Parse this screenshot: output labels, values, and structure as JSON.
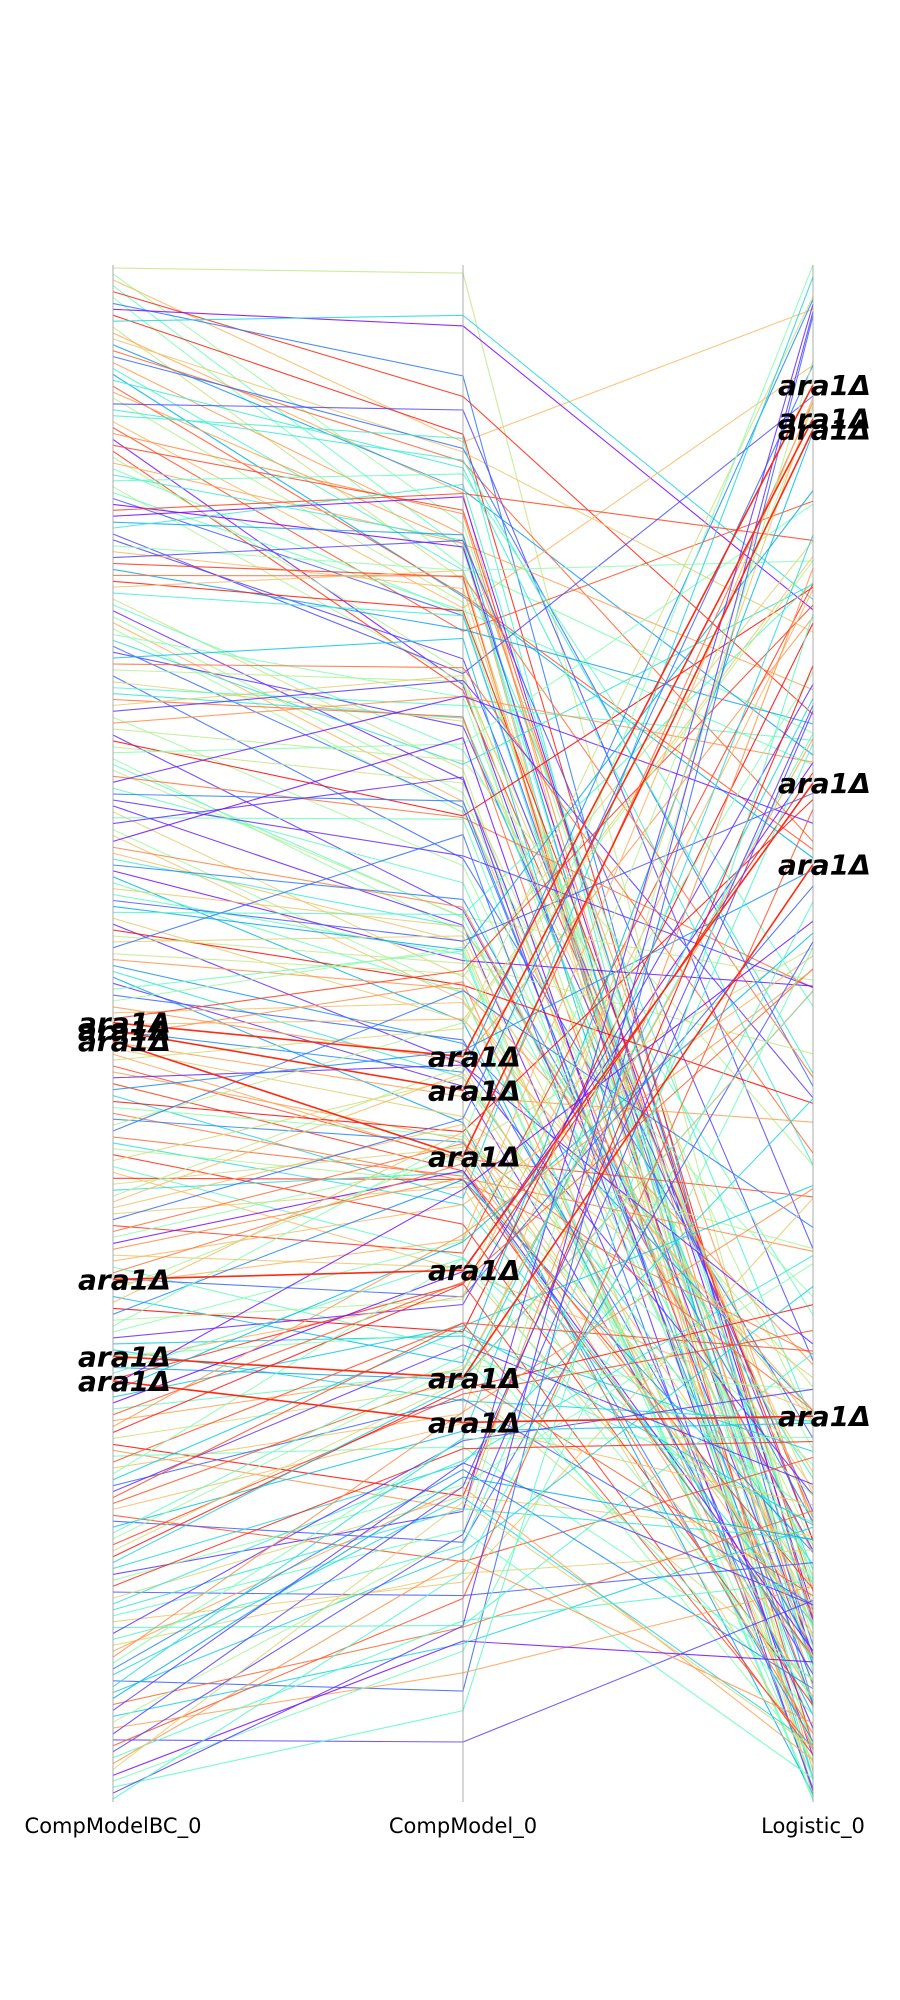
{
  "chart_data": {
    "type": "parallel_coordinates",
    "axes": [
      {
        "key": "CompModelBC_0",
        "label": "CompModelBC_0"
      },
      {
        "key": "CompModel_0",
        "label": "CompModel_0"
      },
      {
        "key": "Logistic_0",
        "label": "Logistic_0"
      }
    ],
    "value_range": [
      0,
      1
    ],
    "colormap": "rainbow",
    "n_lines": 260,
    "highlight_label": "ara1Δ",
    "highlighted_ranks": {
      "CompModelBC_0": [
        0.493,
        0.498,
        0.505,
        0.66,
        0.71,
        0.726
      ],
      "CompModel_0": [
        0.515,
        0.537,
        0.58,
        0.654,
        0.724,
        0.753
      ],
      "Logistic_0": [
        0.078,
        0.1,
        0.107,
        0.337,
        0.39,
        0.749
      ]
    }
  }
}
